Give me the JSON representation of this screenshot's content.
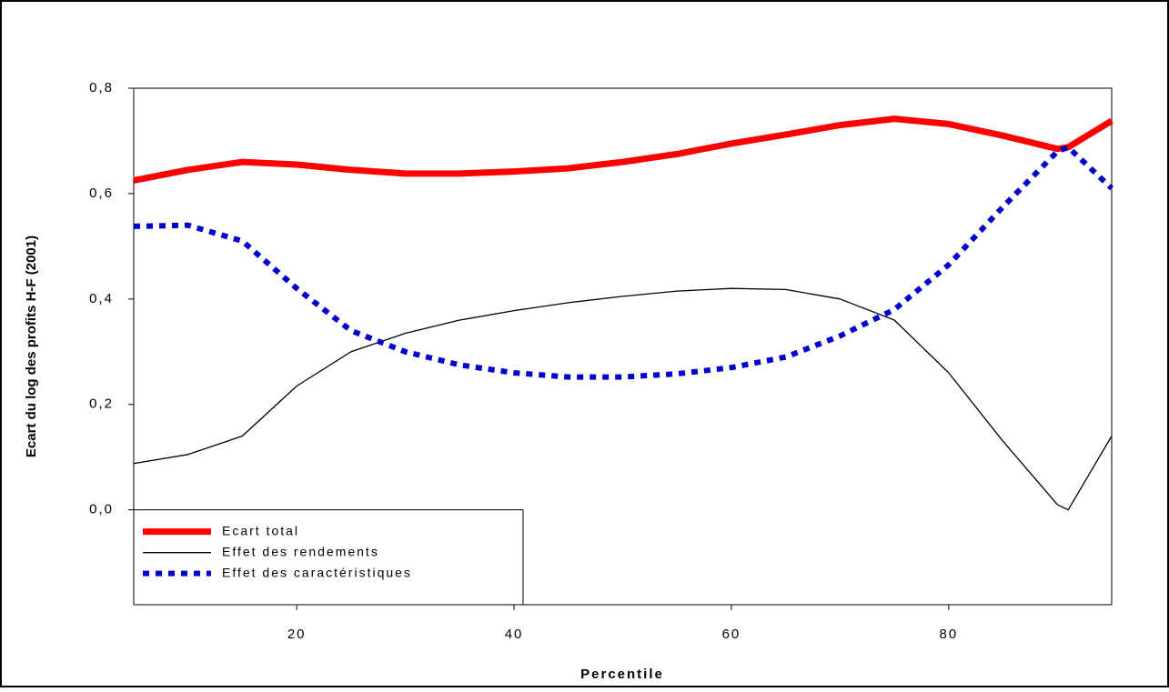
{
  "chart_data": {
    "type": "line",
    "xlabel": "Percentile",
    "ylabel": "Ecart du log des profits H-F (2001)",
    "x": [
      5,
      10,
      15,
      20,
      25,
      30,
      35,
      40,
      45,
      50,
      55,
      60,
      65,
      70,
      75,
      80,
      85,
      90,
      91,
      95
    ],
    "series": [
      {
        "name": "Ecart total",
        "color": "#ff0000",
        "style": "thick",
        "values": [
          0.625,
          0.645,
          0.66,
          0.655,
          0.645,
          0.638,
          0.638,
          0.642,
          0.648,
          0.66,
          0.675,
          0.695,
          0.712,
          0.73,
          0.742,
          0.732,
          0.71,
          0.685,
          0.688,
          0.738
        ]
      },
      {
        "name": "Effet des rendements",
        "color": "#000000",
        "style": "thin",
        "values": [
          0.088,
          0.105,
          0.14,
          0.235,
          0.3,
          0.335,
          0.36,
          0.378,
          0.393,
          0.405,
          0.415,
          0.42,
          0.418,
          0.4,
          0.36,
          0.26,
          0.13,
          0.01,
          0.0,
          0.14
        ]
      },
      {
        "name": "Effet des caractéristiques",
        "color": "#0000cc",
        "style": "dotted",
        "values": [
          0.538,
          0.54,
          0.51,
          0.42,
          0.34,
          0.3,
          0.275,
          0.26,
          0.252,
          0.252,
          0.258,
          0.27,
          0.29,
          0.33,
          0.38,
          0.465,
          0.575,
          0.68,
          0.688,
          0.61
        ]
      }
    ],
    "xlim": [
      5,
      95
    ],
    "ylim": [
      -0.18,
      0.8
    ],
    "xticks": [
      20,
      40,
      60,
      80
    ],
    "yticks": [
      {
        "value": 0,
        "label": "0,0"
      },
      {
        "value": 0.2,
        "label": "0,2"
      },
      {
        "value": 0.4,
        "label": "0,4"
      },
      {
        "value": 0.6,
        "label": "0,6"
      },
      {
        "value": 0.8,
        "label": "0,8"
      }
    ],
    "legend": "lower left"
  }
}
